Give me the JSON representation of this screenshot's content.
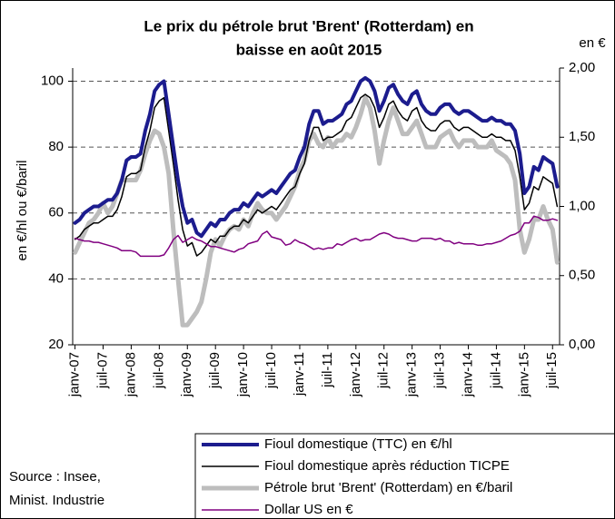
{
  "chart_data": {
    "type": "line",
    "title": [
      "Le prix du pétrole brut 'Brent' (Rotterdam) en",
      "baisse en août 2015"
    ],
    "ylabel": "en €/hl ou €/baril",
    "y2label": "en €",
    "source": [
      "Source : Insee,",
      "Minist. Industrie"
    ],
    "categories": [
      "janv-07",
      null,
      null,
      null,
      null,
      null,
      "juil-07",
      null,
      null,
      null,
      null,
      null,
      "janv-08",
      null,
      null,
      null,
      null,
      null,
      "juil-08",
      null,
      null,
      null,
      null,
      null,
      "janv-09",
      null,
      null,
      null,
      null,
      null,
      "juil-09",
      null,
      null,
      null,
      null,
      null,
      "janv-10",
      null,
      null,
      null,
      null,
      null,
      "juil-10",
      null,
      null,
      null,
      null,
      null,
      "janv-11",
      null,
      null,
      null,
      null,
      null,
      "juil-11",
      null,
      null,
      null,
      null,
      null,
      "janv-12",
      null,
      null,
      null,
      null,
      null,
      "juil-12",
      null,
      null,
      null,
      null,
      null,
      "janv-13",
      null,
      null,
      null,
      null,
      null,
      "juil-13",
      null,
      null,
      null,
      null,
      null,
      "janv-14",
      null,
      null,
      null,
      null,
      null,
      "juil-14",
      null,
      null,
      null,
      null,
      null,
      "janv-15",
      null,
      null,
      null,
      null,
      null,
      "juil-15",
      null
    ],
    "ylim": [
      20,
      104
    ],
    "yticks": [
      20,
      40,
      60,
      80,
      100
    ],
    "y2lim": [
      0,
      2
    ],
    "y2ticks": [
      {
        "value": 0,
        "label": "0,00"
      },
      {
        "value": 0.5,
        "label": "0,50"
      },
      {
        "value": 1,
        "label": "1,00"
      },
      {
        "value": 1.5,
        "label": "1,50"
      },
      {
        "value": 2,
        "label": "2,00"
      }
    ],
    "grid": true,
    "series": [
      {
        "name": "Fioul domestique (TTC) en €/hl",
        "color": "#1c1c8e",
        "width": 4,
        "values": [
          57,
          58,
          60,
          61,
          62,
          62,
          63,
          64,
          64,
          66,
          70,
          76,
          77,
          77,
          78,
          85,
          90,
          97,
          99,
          100,
          90,
          80,
          70,
          62,
          57,
          58,
          54,
          53,
          55,
          57,
          56,
          58,
          58,
          60,
          61,
          61,
          63,
          62,
          64,
          66,
          65,
          66,
          67,
          66,
          68,
          70,
          72,
          73,
          77,
          80,
          87,
          91,
          91,
          87,
          88,
          88,
          89,
          90,
          93,
          94,
          97,
          100,
          101,
          100,
          97,
          91,
          94,
          98,
          99,
          96,
          94,
          93,
          96,
          97,
          93,
          91,
          90,
          90,
          92,
          93,
          93,
          91,
          90,
          91,
          91,
          90,
          89,
          88,
          88,
          89,
          88,
          88,
          87,
          87,
          85,
          78,
          66,
          68,
          74,
          73,
          77,
          76,
          75,
          68
        ]
      },
      {
        "name": "Fioul domestique après réduction TICPE",
        "color": "#000000",
        "width": 1.5,
        "values": [
          52,
          53,
          55,
          56,
          57,
          57,
          58,
          59,
          59,
          61,
          65,
          71,
          72,
          72,
          73,
          80,
          85,
          92,
          94,
          95,
          85,
          75,
          64,
          55,
          50,
          51,
          47,
          48,
          50,
          52,
          51,
          53,
          53,
          55,
          56,
          56,
          58,
          57,
          59,
          61,
          60,
          61,
          62,
          61,
          63,
          65,
          67,
          68,
          72,
          75,
          82,
          86,
          86,
          82,
          83,
          83,
          84,
          85,
          88,
          89,
          92,
          95,
          96,
          95,
          92,
          86,
          89,
          93,
          94,
          91,
          89,
          88,
          91,
          92,
          88,
          86,
          85,
          85,
          87,
          88,
          88,
          86,
          85,
          86,
          86,
          85,
          84,
          83,
          83,
          84,
          83,
          83,
          82,
          82,
          79,
          71,
          61,
          63,
          68,
          67,
          71,
          70,
          69,
          62
        ]
      },
      {
        "name": "Pétrole brut 'Brent' (Rotterdam) en €/baril",
        "color": "#bdbdbd",
        "width": 5,
        "values": [
          48,
          51,
          54,
          57,
          58,
          60,
          63,
          60,
          62,
          66,
          70,
          70,
          70,
          70,
          73,
          78,
          82,
          85,
          84,
          80,
          72,
          55,
          40,
          26,
          26,
          28,
          30,
          33,
          40,
          48,
          52,
          50,
          53,
          55,
          56,
          55,
          58,
          56,
          60,
          63,
          61,
          60,
          60,
          58,
          60,
          62,
          65,
          68,
          73,
          76,
          82,
          84,
          81,
          80,
          83,
          80,
          82,
          82,
          84,
          83,
          86,
          90,
          95,
          92,
          85,
          75,
          82,
          88,
          92,
          88,
          84,
          84,
          86,
          88,
          84,
          80,
          80,
          80,
          83,
          84,
          85,
          82,
          80,
          82,
          82,
          82,
          80,
          80,
          80,
          82,
          79,
          78,
          77,
          75,
          70,
          55,
          48,
          52,
          58,
          58,
          62,
          58,
          55,
          45
        ]
      },
      {
        "name": "Dollar US en €",
        "color": "#800080",
        "width": 1.5,
        "axis": "y2",
        "values": [
          0.77,
          0.76,
          0.75,
          0.75,
          0.74,
          0.74,
          0.73,
          0.72,
          0.71,
          0.7,
          0.68,
          0.68,
          0.68,
          0.67,
          0.64,
          0.64,
          0.64,
          0.64,
          0.64,
          0.65,
          0.7,
          0.76,
          0.79,
          0.74,
          0.76,
          0.78,
          0.76,
          0.75,
          0.73,
          0.71,
          0.71,
          0.7,
          0.69,
          0.68,
          0.67,
          0.69,
          0.7,
          0.73,
          0.74,
          0.75,
          0.8,
          0.82,
          0.78,
          0.77,
          0.76,
          0.72,
          0.73,
          0.76,
          0.74,
          0.73,
          0.71,
          0.69,
          0.7,
          0.69,
          0.7,
          0.7,
          0.73,
          0.72,
          0.74,
          0.76,
          0.77,
          0.75,
          0.76,
          0.76,
          0.78,
          0.8,
          0.81,
          0.8,
          0.78,
          0.77,
          0.77,
          0.76,
          0.75,
          0.75,
          0.77,
          0.77,
          0.77,
          0.76,
          0.77,
          0.75,
          0.75,
          0.73,
          0.74,
          0.73,
          0.73,
          0.73,
          0.72,
          0.72,
          0.73,
          0.73,
          0.74,
          0.75,
          0.77,
          0.79,
          0.8,
          0.82,
          0.88,
          0.88,
          0.93,
          0.92,
          0.9,
          0.9,
          0.91,
          0.9
        ]
      }
    ]
  }
}
